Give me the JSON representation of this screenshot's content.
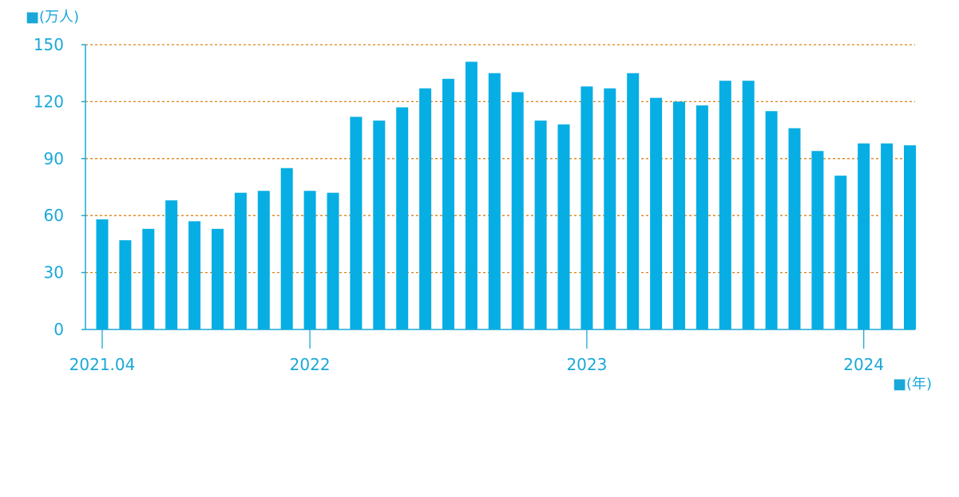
{
  "colors": {
    "bar": "#06aee4",
    "axis": "#1aa8d8",
    "grid": "#e07f10",
    "text": "#1aa8d8"
  },
  "chart_data": {
    "type": "bar",
    "y_unit_label": "■(万人)",
    "x_unit_label": "■(年)",
    "ylim": [
      0,
      150
    ],
    "y_ticks": [
      "0",
      "30",
      "60",
      "90",
      "120",
      "150"
    ],
    "grid": true,
    "x_tick_labels": [
      {
        "label": "2021.04",
        "index": 0
      },
      {
        "label": "2022",
        "index": 9
      },
      {
        "label": "2023",
        "index": 21
      },
      {
        "label": "2024",
        "index": 33
      }
    ],
    "categories": [
      "2021-04",
      "2021-05",
      "2021-06",
      "2021-07",
      "2021-08",
      "2021-09",
      "2021-10",
      "2021-11",
      "2021-12",
      "2022-01",
      "2022-02",
      "2022-03",
      "2022-04",
      "2022-05",
      "2022-06",
      "2022-07",
      "2022-08",
      "2022-09",
      "2022-10",
      "2022-11",
      "2022-12",
      "2023-01",
      "2023-02",
      "2023-03",
      "2023-04",
      "2023-05",
      "2023-06",
      "2023-07",
      "2023-08",
      "2023-09",
      "2023-10",
      "2023-11",
      "2023-12",
      "2024-01",
      "2024-02",
      "2024-03"
    ],
    "values": [
      58,
      47,
      53,
      68,
      57,
      53,
      72,
      73,
      85,
      73,
      72,
      112,
      110,
      117,
      127,
      132,
      141,
      135,
      125,
      110,
      108,
      128,
      127,
      135,
      122,
      120,
      118,
      131,
      131,
      115,
      106,
      94,
      81,
      98,
      98,
      97
    ]
  }
}
